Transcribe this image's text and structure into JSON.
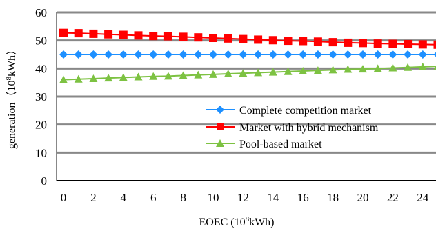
{
  "chart_data": {
    "type": "line",
    "x": [
      0,
      1,
      2,
      3,
      4,
      5,
      6,
      7,
      8,
      9,
      10,
      11,
      12,
      13,
      14,
      15,
      16,
      17,
      18,
      19,
      20,
      21,
      22,
      23,
      24,
      25
    ],
    "x_ticks": [
      0,
      2,
      4,
      6,
      8,
      10,
      12,
      14,
      16,
      18,
      20,
      22,
      24
    ],
    "y_ticks": [
      0,
      10,
      20,
      30,
      40,
      50,
      60
    ],
    "xlim": [
      0,
      25
    ],
    "ylim": [
      0,
      60
    ],
    "xlabel_main": "EOEC (10",
    "xlabel_sup": "8",
    "xlabel_tail": "kWh)",
    "ylabel_main": "generation（10",
    "ylabel_sup": "8",
    "ylabel_tail": "kWh）",
    "grid": "horizontal",
    "legend_position": "center-right",
    "series": [
      {
        "name": "Complete competition market",
        "color": "#1e90ff",
        "marker": "diamond",
        "values": [
          45,
          45,
          45,
          45,
          45,
          45,
          45,
          45,
          45,
          45,
          45,
          45,
          45,
          45,
          45,
          45,
          45,
          45,
          45,
          45,
          45,
          45,
          45,
          45,
          45,
          45
        ]
      },
      {
        "name": "Market with hybrid mechanism",
        "color": "#ff0000",
        "marker": "square",
        "values": [
          52.7,
          52.6,
          52.4,
          52.2,
          52.0,
          51.8,
          51.6,
          51.5,
          51.3,
          51.1,
          50.9,
          50.7,
          50.5,
          50.3,
          50.1,
          49.9,
          49.8,
          49.6,
          49.4,
          49.2,
          49.1,
          48.9,
          48.8,
          48.7,
          48.6,
          48.5
        ]
      },
      {
        "name": "Pool-based market",
        "color": "#7dc242",
        "marker": "triangle",
        "values": [
          36.0,
          36.2,
          36.4,
          36.6,
          36.8,
          37.0,
          37.2,
          37.3,
          37.5,
          37.7,
          37.9,
          38.1,
          38.3,
          38.5,
          38.7,
          38.9,
          39.1,
          39.3,
          39.5,
          39.7,
          39.8,
          40.0,
          40.2,
          40.4,
          40.6,
          40.8
        ]
      }
    ]
  }
}
